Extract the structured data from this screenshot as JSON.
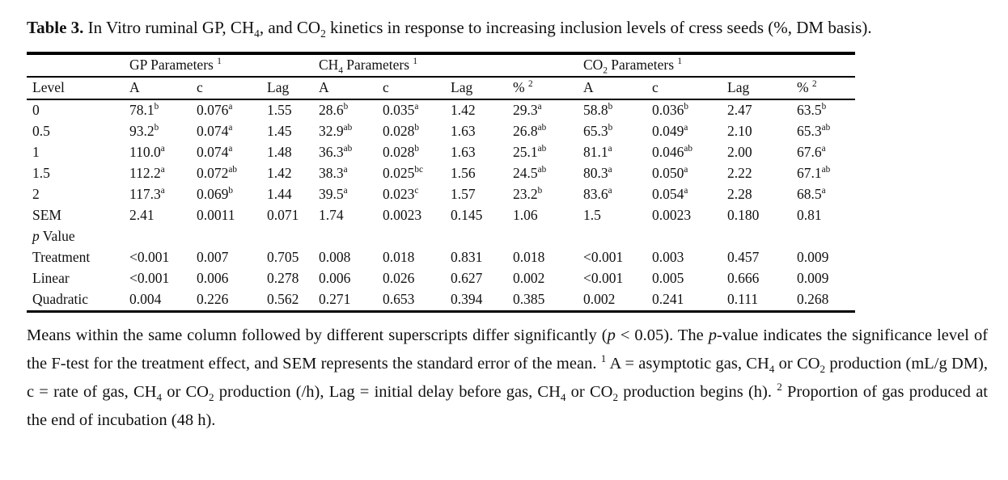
{
  "page": {
    "background": "#ffffff",
    "text_color": "#111111"
  },
  "caption": {
    "segments": [
      {
        "t": "Table 3.",
        "b": true
      },
      {
        "t": " In Vitro ruminal GP, CH"
      },
      {
        "t": "4",
        "sub": true
      },
      {
        "t": ", and CO"
      },
      {
        "t": "2",
        "sub": true
      },
      {
        "t": " kinetics in response to increasing inclusion levels of cress seeds (%, DM basis)."
      }
    ]
  },
  "table": {
    "group_headers": [
      {
        "span": 1,
        "segments": []
      },
      {
        "span": 3,
        "segments": [
          {
            "t": "GP Parameters "
          },
          {
            "t": "1",
            "sup": true
          }
        ]
      },
      {
        "span": 4,
        "segments": [
          {
            "t": "CH"
          },
          {
            "t": "4",
            "sub": true
          },
          {
            "t": " Parameters "
          },
          {
            "t": "1",
            "sup": true
          }
        ]
      },
      {
        "span": 4,
        "segments": [
          {
            "t": "CO"
          },
          {
            "t": "2",
            "sub": true
          },
          {
            "t": " Parameters "
          },
          {
            "t": "1",
            "sup": true
          }
        ]
      }
    ],
    "column_headers": [
      {
        "segments": [
          {
            "t": "Level"
          }
        ]
      },
      {
        "segments": [
          {
            "t": "A"
          }
        ]
      },
      {
        "segments": [
          {
            "t": "c"
          }
        ]
      },
      {
        "segments": [
          {
            "t": "Lag"
          }
        ]
      },
      {
        "segments": [
          {
            "t": "A"
          }
        ]
      },
      {
        "segments": [
          {
            "t": "c"
          }
        ]
      },
      {
        "segments": [
          {
            "t": "Lag"
          }
        ]
      },
      {
        "segments": [
          {
            "t": "% "
          },
          {
            "t": "2",
            "sup": true
          }
        ]
      },
      {
        "segments": [
          {
            "t": "A"
          }
        ]
      },
      {
        "segments": [
          {
            "t": "c"
          }
        ]
      },
      {
        "segments": [
          {
            "t": "Lag"
          }
        ]
      },
      {
        "segments": [
          {
            "t": "% "
          },
          {
            "t": "2",
            "sup": true
          }
        ]
      }
    ],
    "rows": [
      {
        "label": [
          {
            "t": "0"
          }
        ],
        "cells": [
          "78.1^b",
          "0.076^a",
          "1.55",
          "28.6^b",
          "0.035^a",
          "1.42",
          "29.3^a",
          "58.8^b",
          "0.036^b",
          "2.47",
          "63.5^b"
        ]
      },
      {
        "label": [
          {
            "t": "0.5"
          }
        ],
        "cells": [
          "93.2^b",
          "0.074^a",
          "1.45",
          "32.9^ab",
          "0.028^b",
          "1.63",
          "26.8^ab",
          "65.3^b",
          "0.049^a",
          "2.10",
          "65.3^ab"
        ]
      },
      {
        "label": [
          {
            "t": "1"
          }
        ],
        "cells": [
          "110.0^a",
          "0.074^a",
          "1.48",
          "36.3^ab",
          "0.028^b",
          "1.63",
          "25.1^ab",
          "81.1^a",
          "0.046^ab",
          "2.00",
          "67.6^a"
        ]
      },
      {
        "label": [
          {
            "t": "1.5"
          }
        ],
        "cells": [
          "112.2^a",
          "0.072^ab",
          "1.42",
          "38.3^a",
          "0.025^bc",
          "1.56",
          "24.5^ab",
          "80.3^a",
          "0.050^a",
          "2.22",
          "67.1^ab"
        ]
      },
      {
        "label": [
          {
            "t": "2"
          }
        ],
        "cells": [
          "117.3^a",
          "0.069^b",
          "1.44",
          "39.5^a",
          "0.023^c",
          "1.57",
          "23.2^b",
          "83.6^a",
          "0.054^a",
          "2.28",
          "68.5^a"
        ]
      },
      {
        "label": [
          {
            "t": "SEM"
          }
        ],
        "cells": [
          "2.41",
          "0.0011",
          "0.071",
          "1.74",
          "0.0023",
          "0.145",
          "1.06",
          "1.5",
          "0.0023",
          "0.180",
          "0.81"
        ]
      },
      {
        "label": [
          {
            "t": "p",
            "i": true
          },
          {
            "t": " Value"
          }
        ],
        "cells": [
          "",
          "",
          "",
          "",
          "",
          "",
          "",
          "",
          "",
          "",
          ""
        ]
      },
      {
        "label": [
          {
            "t": "Treatment"
          }
        ],
        "cells": [
          "<0.001",
          "0.007",
          "0.705",
          "0.008",
          "0.018",
          "0.831",
          "0.018",
          "<0.001",
          "0.003",
          "0.457",
          "0.009"
        ]
      },
      {
        "label": [
          {
            "t": "Linear"
          }
        ],
        "cells": [
          "<0.001",
          "0.006",
          "0.278",
          "0.006",
          "0.026",
          "0.627",
          "0.002",
          "<0.001",
          "0.005",
          "0.666",
          "0.009"
        ]
      },
      {
        "label": [
          {
            "t": "Quadratic"
          }
        ],
        "cells": [
          "0.004",
          "0.226",
          "0.562",
          "0.271",
          "0.653",
          "0.394",
          "0.385",
          "0.002",
          "0.241",
          "0.111",
          "0.268"
        ]
      }
    ]
  },
  "footnote": {
    "segments": [
      {
        "t": "Means within the same column followed by different superscripts differ significantly ("
      },
      {
        "t": "p",
        "i": true
      },
      {
        "t": " < 0.05). The "
      },
      {
        "t": "p",
        "i": true
      },
      {
        "t": "-value indicates the significance level of the F-test for the treatment effect, and SEM represents the standard error of the mean. "
      },
      {
        "t": "1",
        "sup": true
      },
      {
        "t": " A = asymptotic gas, CH"
      },
      {
        "t": "4",
        "sub": true
      },
      {
        "t": " or CO"
      },
      {
        "t": "2",
        "sub": true
      },
      {
        "t": " production (mL/g DM), c = rate of gas, CH"
      },
      {
        "t": "4",
        "sub": true
      },
      {
        "t": " or CO"
      },
      {
        "t": "2",
        "sub": true
      },
      {
        "t": " production (/h), Lag = initial delay before gas, CH"
      },
      {
        "t": "4",
        "sub": true
      },
      {
        "t": " or CO"
      },
      {
        "t": "2",
        "sub": true
      },
      {
        "t": " production begins (h). "
      },
      {
        "t": "2",
        "sup": true
      },
      {
        "t": " Proportion of gas produced at the end of incubation (48 h)."
      }
    ]
  }
}
